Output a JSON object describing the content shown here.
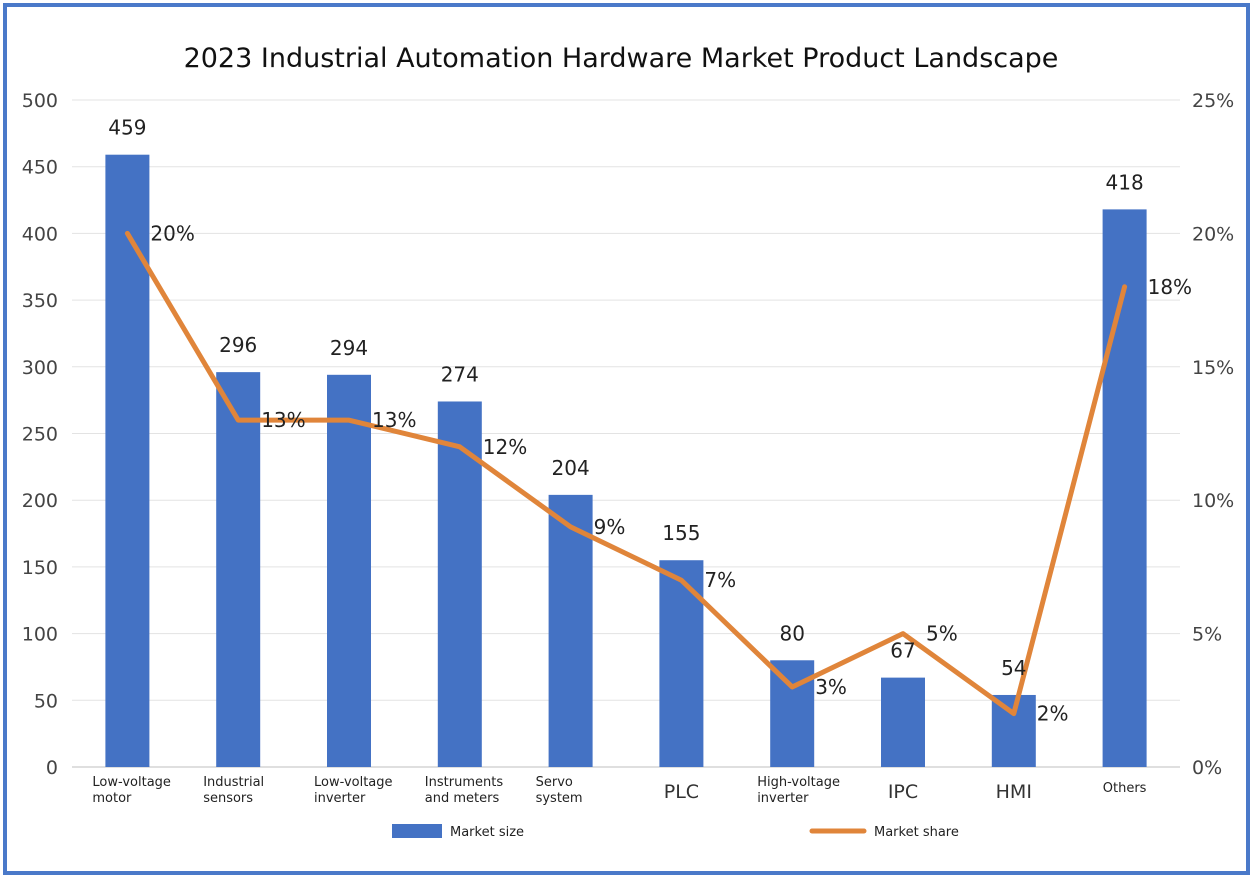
{
  "chart_data": {
    "type": "bar",
    "title": "2023 Industrial Automation Hardware Market Product Landscape",
    "categories": [
      [
        "Low-voltage",
        "motor"
      ],
      [
        "Industrial",
        "sensors"
      ],
      [
        "Low-voltage",
        "inverter"
      ],
      [
        "Instruments",
        "and meters"
      ],
      [
        "Servo",
        "system"
      ],
      [
        "PLC"
      ],
      [
        "High-voltage",
        "inverter"
      ],
      [
        "IPC"
      ],
      [
        "HMI"
      ],
      [
        "Others"
      ]
    ],
    "series": [
      {
        "name": "Market size",
        "type": "bar",
        "axis": "left",
        "color": "#4472c4",
        "values": [
          459,
          296,
          294,
          274,
          204,
          155,
          80,
          67,
          54,
          418
        ],
        "labels": [
          "459",
          "296",
          "294",
          "274",
          "204",
          "155",
          "80",
          "67",
          "54",
          "418"
        ]
      },
      {
        "name": "Market share",
        "type": "line",
        "axis": "right",
        "color": "#e0853a",
        "values": [
          20,
          13,
          13,
          12,
          9,
          7,
          3,
          5,
          2,
          18
        ],
        "labels": [
          "20%",
          "13%",
          "13%",
          "12%",
          "9%",
          "7%",
          "3%",
          "5%",
          "2%",
          "18%"
        ]
      }
    ],
    "y_left": {
      "range": [
        0,
        500
      ],
      "ticks": [
        "0",
        "50",
        "100",
        "150",
        "200",
        "250",
        "300",
        "350",
        "400",
        "450",
        "500"
      ]
    },
    "y_right": {
      "range": [
        0,
        25
      ],
      "ticks": [
        "0%",
        "5%",
        "10%",
        "15%",
        "20%",
        "25%"
      ]
    },
    "grid": true,
    "legend": "bottom"
  }
}
